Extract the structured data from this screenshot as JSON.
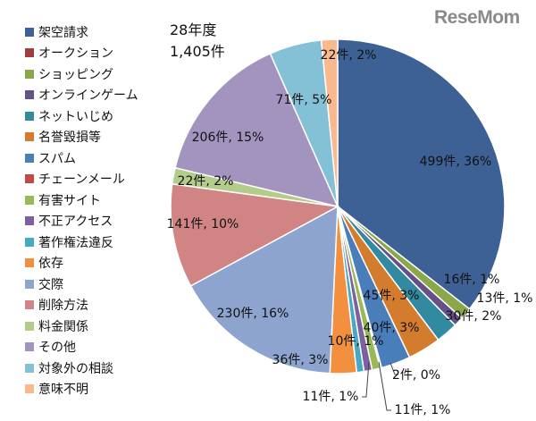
{
  "logo": "ReseMom",
  "chart_data": {
    "type": "pie",
    "title": "28年度",
    "subtitle": "1,405件",
    "legend_position": "left",
    "start": "top, clockwise",
    "slices": [
      {
        "name": "架空請求",
        "value": 499,
        "label": "499件, 36%",
        "color": "#3D6194"
      },
      {
        "name": "オークション",
        "value": 0,
        "label": "",
        "color": "#A03E3B"
      },
      {
        "name": "ショッピング",
        "value": 16,
        "label": "16件, 1%",
        "color": "#8AA84A"
      },
      {
        "name": "オンラインゲーム",
        "value": 13,
        "label": "13件, 1%",
        "color": "#65508A"
      },
      {
        "name": "ネットいじめ",
        "value": 30,
        "label": "30件, 2%",
        "color": "#328AA0"
      },
      {
        "name": "名誉毀損等",
        "value": 45,
        "label": "45件, 3%",
        "color": "#D47C2E"
      },
      {
        "name": "スパム",
        "value": 40,
        "label": "40件, 3%",
        "color": "#4A7EBB"
      },
      {
        "name": "チェーンメール",
        "value": 2,
        "label": "2件, 0%",
        "color": "#BE4B48"
      },
      {
        "name": "有害サイト",
        "value": 11,
        "label": "11件, 1%",
        "color": "#98B954"
      },
      {
        "name": "不正アクセス",
        "value": 11,
        "label": "11件, 1%",
        "color": "#7D60A0"
      },
      {
        "name": "著作権法違反",
        "value": 10,
        "label": "10件, 1%",
        "color": "#46AAC5"
      },
      {
        "name": "依存",
        "value": 36,
        "label": "36件, 3%",
        "color": "#F2903F"
      },
      {
        "name": "交際",
        "value": 230,
        "label": "230件, 16%",
        "color": "#8DA5CE"
      },
      {
        "name": "削除方法",
        "value": 141,
        "label": "141件, 10%",
        "color": "#D08584"
      },
      {
        "name": "料金関係",
        "value": 22,
        "label": "22件, 2%",
        "color": "#B3CC8A"
      },
      {
        "name": "その他",
        "value": 206,
        "label": "206件, 15%",
        "color": "#A394BF"
      },
      {
        "name": "対象外の相談",
        "value": 71,
        "label": "71件, 5%",
        "color": "#84C1D6"
      },
      {
        "name": "意味不明",
        "value": 22,
        "label": "22件, 2%",
        "color": "#F9B88E"
      }
    ]
  }
}
